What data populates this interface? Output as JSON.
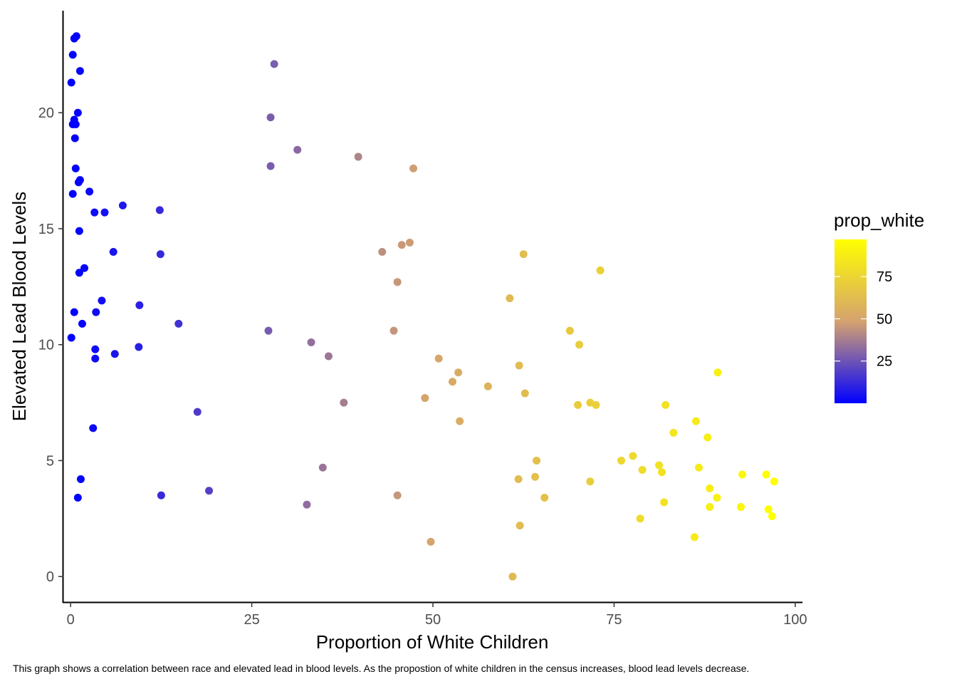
{
  "chart_data": {
    "type": "scatter",
    "xlabel": "Proportion of White Children",
    "ylabel": "Elevated Lead Blood Levels",
    "caption": "This graph shows a correlation between race and elevated lead in blood levels. As the propostion of white children in the census increases, blood lead levels decrease.",
    "xlim": [
      -1,
      101
    ],
    "ylim": [
      -1.1,
      24.4
    ],
    "x_ticks": [
      0,
      25,
      50,
      75,
      100
    ],
    "y_ticks": [
      0,
      5,
      10,
      15,
      20
    ],
    "grid": false,
    "color_scale": {
      "variable": "prop_white",
      "low_color": "#0000FF",
      "mid_color": "#D5A26F",
      "high_color": "#FFFF00",
      "range": [
        0,
        97
      ],
      "ticks": [
        25,
        50,
        75
      ]
    },
    "legend_placement": "right",
    "points": [
      {
        "x": 0.8,
        "y": 23.3
      },
      {
        "x": 0.5,
        "y": 23.2
      },
      {
        "x": 0.3,
        "y": 22.5
      },
      {
        "x": 1.3,
        "y": 21.8
      },
      {
        "x": 0.1,
        "y": 21.3
      },
      {
        "x": 1.0,
        "y": 20.0
      },
      {
        "x": 0.5,
        "y": 19.7
      },
      {
        "x": 0.3,
        "y": 19.5
      },
      {
        "x": 0.7,
        "y": 19.5
      },
      {
        "x": 0.6,
        "y": 18.9
      },
      {
        "x": 0.7,
        "y": 17.6
      },
      {
        "x": 1.3,
        "y": 17.1
      },
      {
        "x": 1.1,
        "y": 17.0
      },
      {
        "x": 2.6,
        "y": 16.6
      },
      {
        "x": 0.3,
        "y": 16.5
      },
      {
        "x": 7.2,
        "y": 16.0
      },
      {
        "x": 4.7,
        "y": 15.7
      },
      {
        "x": 3.3,
        "y": 15.7
      },
      {
        "x": 12.3,
        "y": 15.8
      },
      {
        "x": 1.2,
        "y": 14.9
      },
      {
        "x": 5.9,
        "y": 14.0
      },
      {
        "x": 12.4,
        "y": 13.9
      },
      {
        "x": 1.9,
        "y": 13.3
      },
      {
        "x": 1.2,
        "y": 13.1
      },
      {
        "x": 4.3,
        "y": 11.9
      },
      {
        "x": 9.5,
        "y": 11.7
      },
      {
        "x": 0.5,
        "y": 11.4
      },
      {
        "x": 3.5,
        "y": 11.4
      },
      {
        "x": 14.9,
        "y": 10.9
      },
      {
        "x": 1.6,
        "y": 10.9
      },
      {
        "x": 0.1,
        "y": 10.3
      },
      {
        "x": 3.4,
        "y": 9.8
      },
      {
        "x": 9.4,
        "y": 9.9
      },
      {
        "x": 6.1,
        "y": 9.6
      },
      {
        "x": 3.4,
        "y": 9.4
      },
      {
        "x": 17.5,
        "y": 7.1
      },
      {
        "x": 3.1,
        "y": 6.4
      },
      {
        "x": 1.4,
        "y": 4.2
      },
      {
        "x": 1.0,
        "y": 3.4
      },
      {
        "x": 12.5,
        "y": 3.5
      },
      {
        "x": 19.1,
        "y": 3.7
      },
      {
        "x": 28.1,
        "y": 22.1
      },
      {
        "x": 27.6,
        "y": 19.8
      },
      {
        "x": 27.6,
        "y": 17.7
      },
      {
        "x": 31.3,
        "y": 18.4
      },
      {
        "x": 39.7,
        "y": 18.1
      },
      {
        "x": 47.3,
        "y": 17.6
      },
      {
        "x": 45.7,
        "y": 14.3
      },
      {
        "x": 46.8,
        "y": 14.4
      },
      {
        "x": 43.0,
        "y": 14.0
      },
      {
        "x": 45.1,
        "y": 12.7
      },
      {
        "x": 44.6,
        "y": 10.6
      },
      {
        "x": 27.3,
        "y": 10.6
      },
      {
        "x": 33.2,
        "y": 10.1
      },
      {
        "x": 35.6,
        "y": 9.5
      },
      {
        "x": 37.7,
        "y": 7.5
      },
      {
        "x": 34.8,
        "y": 4.7
      },
      {
        "x": 32.6,
        "y": 3.1
      },
      {
        "x": 45.1,
        "y": 3.5
      },
      {
        "x": 50.8,
        "y": 9.4
      },
      {
        "x": 53.5,
        "y": 8.8
      },
      {
        "x": 52.7,
        "y": 8.4
      },
      {
        "x": 57.6,
        "y": 8.2
      },
      {
        "x": 48.9,
        "y": 7.7
      },
      {
        "x": 53.7,
        "y": 6.7
      },
      {
        "x": 49.7,
        "y": 1.5
      },
      {
        "x": 62.5,
        "y": 13.9
      },
      {
        "x": 60.6,
        "y": 12.0
      },
      {
        "x": 61.9,
        "y": 9.1
      },
      {
        "x": 62.7,
        "y": 7.9
      },
      {
        "x": 61.0,
        "y": 0.0
      },
      {
        "x": 62.0,
        "y": 2.2
      },
      {
        "x": 64.3,
        "y": 5.0
      },
      {
        "x": 64.1,
        "y": 4.3
      },
      {
        "x": 61.8,
        "y": 4.2
      },
      {
        "x": 65.4,
        "y": 3.4
      },
      {
        "x": 73.1,
        "y": 13.2
      },
      {
        "x": 68.9,
        "y": 10.6
      },
      {
        "x": 70.2,
        "y": 10.0
      },
      {
        "x": 70.0,
        "y": 7.4
      },
      {
        "x": 71.7,
        "y": 7.5
      },
      {
        "x": 72.5,
        "y": 7.4
      },
      {
        "x": 71.7,
        "y": 4.1
      },
      {
        "x": 76.0,
        "y": 5.0
      },
      {
        "x": 77.6,
        "y": 5.2
      },
      {
        "x": 78.9,
        "y": 4.6
      },
      {
        "x": 78.6,
        "y": 2.5
      },
      {
        "x": 81.2,
        "y": 4.8
      },
      {
        "x": 81.6,
        "y": 4.5
      },
      {
        "x": 81.9,
        "y": 3.2
      },
      {
        "x": 82.1,
        "y": 7.4
      },
      {
        "x": 83.2,
        "y": 6.2
      },
      {
        "x": 86.3,
        "y": 6.7
      },
      {
        "x": 86.7,
        "y": 4.7
      },
      {
        "x": 87.9,
        "y": 6.0
      },
      {
        "x": 88.2,
        "y": 3.8
      },
      {
        "x": 88.2,
        "y": 3.0
      },
      {
        "x": 89.2,
        "y": 3.4
      },
      {
        "x": 86.1,
        "y": 1.7
      },
      {
        "x": 89.3,
        "y": 8.8
      },
      {
        "x": 92.7,
        "y": 4.4
      },
      {
        "x": 92.5,
        "y": 3.0
      },
      {
        "x": 96.0,
        "y": 4.4
      },
      {
        "x": 97.1,
        "y": 4.1
      },
      {
        "x": 96.3,
        "y": 2.9
      },
      {
        "x": 96.8,
        "y": 2.6
      }
    ]
  }
}
